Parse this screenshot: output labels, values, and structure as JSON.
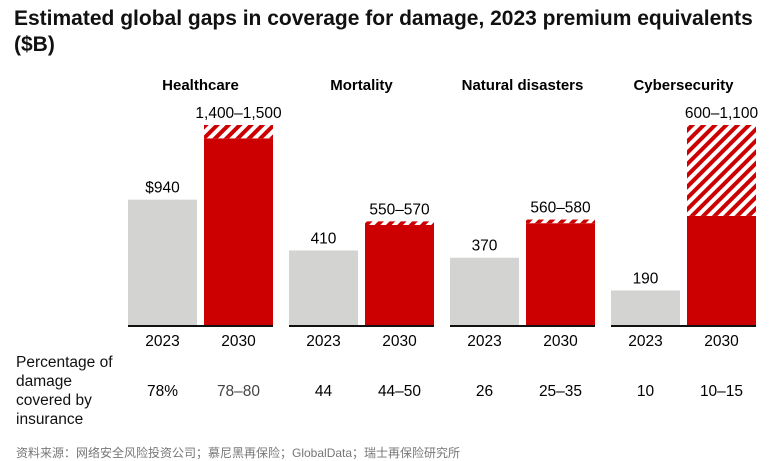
{
  "chart_data": {
    "type": "bar",
    "title": "Estimated global gaps in coverage for damage, 2023 premium equivalents ($B)",
    "categories": [
      "2023",
      "2030"
    ],
    "groups": [
      {
        "name": "Healthcare",
        "v2023": 940,
        "label2023": "$940",
        "low2030": 1400,
        "high2030": 1500,
        "label2030": "1,400–1,500",
        "pct2023": "78%",
        "pct2030": "78–80"
      },
      {
        "name": "Mortality",
        "v2023": 410,
        "label2023": "410",
        "low2030": 550,
        "high2030": 570,
        "label2030": "550–570",
        "pct2023": "44",
        "pct2030": "44–50"
      },
      {
        "name": "Natural disasters",
        "v2023": 370,
        "label2023": "370",
        "low2030": 560,
        "high2030": 580,
        "label2030": "560–580",
        "pct2023": "26",
        "pct2030": "25–35"
      },
      {
        "name": "Cybersecurity",
        "v2023": 190,
        "label2023": "190",
        "low2030": 600,
        "high2030": 1100,
        "label2030": "600–1,100",
        "pct2023": "10",
        "pct2030": "10–15"
      }
    ],
    "scales": [
      {
        "group": "Healthcare",
        "max": 1500
      },
      {
        "group": "Mortality",
        "max": 1100
      },
      {
        "group": "Natural disasters",
        "max": 1100
      },
      {
        "group": "Cybersecurity",
        "max": 1100
      }
    ],
    "row_label": "Percentage of damage covered by insurance",
    "colors": {
      "bar2023": "#d3d3d1",
      "bar2030": "#cc0000",
      "hatch": "#cc0000"
    }
  },
  "source": "资料来源：网络安全风险投资公司；慕尼黑再保险；GlobalData；瑞士再保险研究所"
}
